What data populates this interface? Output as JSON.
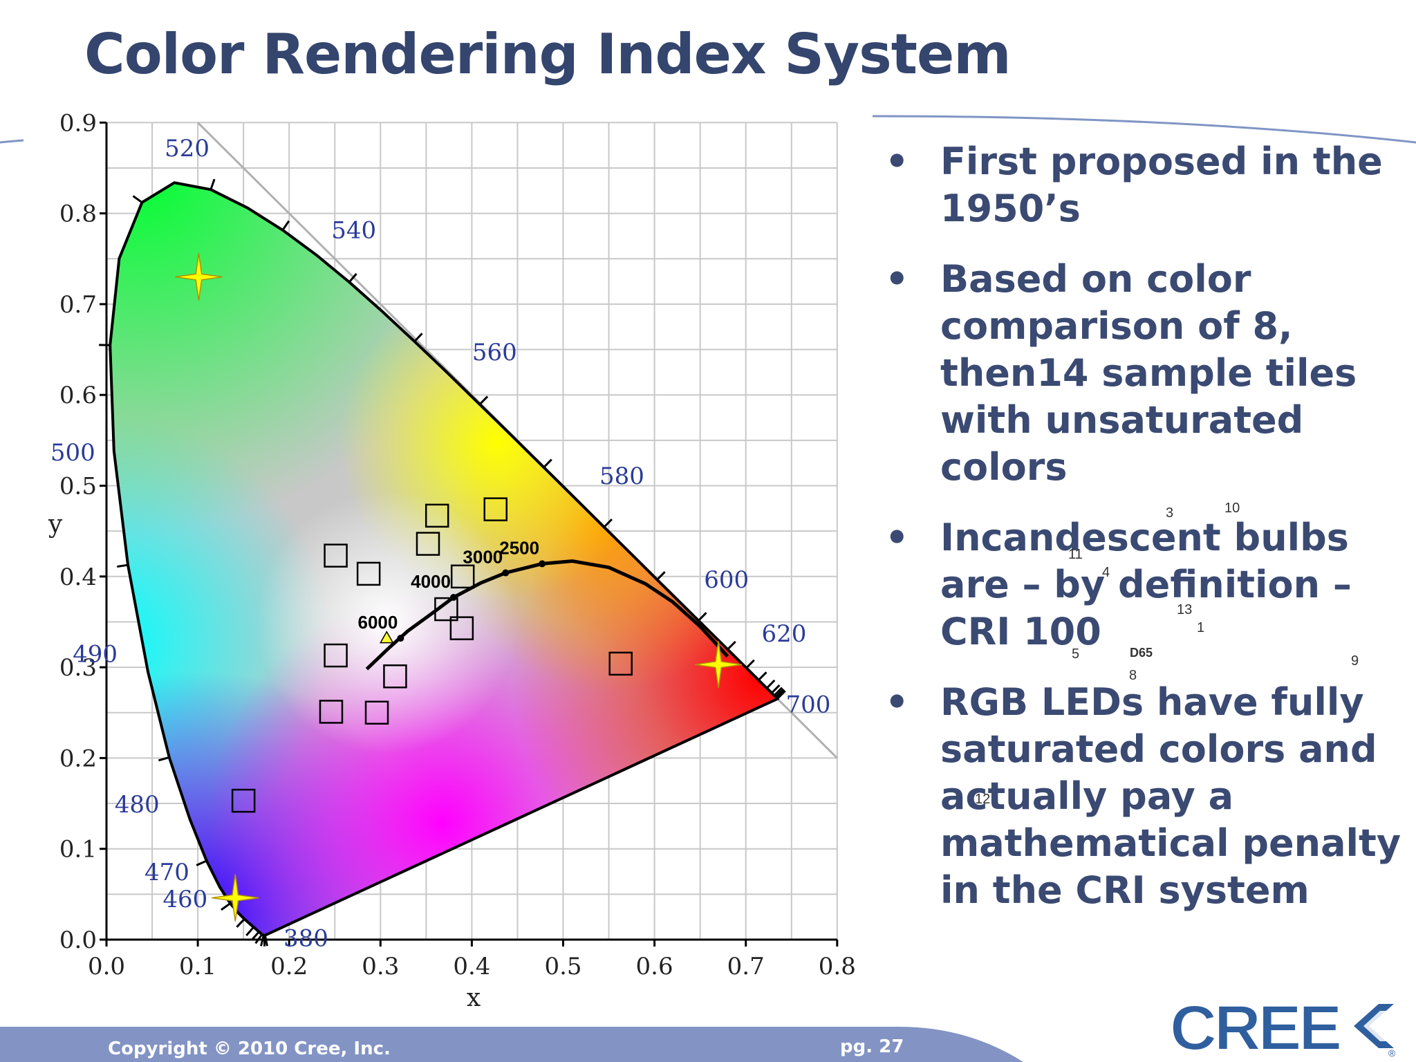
{
  "title": "Color Rendering Index System",
  "bullets": [
    "First proposed in the 1950’s",
    "Based on color comparison of  8, then14 sample tiles with unsaturated colors",
    "Incandescent bulbs are – by definition – CRI 100",
    "RGB LEDs have fully saturated colors and actually pay a mathematical penalty in the CRI system"
  ],
  "bullet_symbol": "•",
  "sample_number_overlay": [
    {
      "label": "3"
    },
    {
      "label": "10"
    },
    {
      "label": "11"
    },
    {
      "label": "4"
    },
    {
      "label": "13"
    },
    {
      "label": "1"
    },
    {
      "label": "5"
    },
    {
      "label": "D65"
    },
    {
      "label": "8"
    },
    {
      "label": "9"
    },
    {
      "label": "12"
    }
  ],
  "diagram": {
    "x_axis_label": "x",
    "y_axis_label": "y",
    "x_ticks": [
      "0.0",
      "0.1",
      "0.2",
      "0.3",
      "0.4",
      "0.5",
      "0.6",
      "0.7",
      "0.8"
    ],
    "y_ticks": [
      "0.0",
      "0.1",
      "0.2",
      "0.3",
      "0.4",
      "0.5",
      "0.6",
      "0.7",
      "0.8",
      "0.9"
    ],
    "x_range": [
      0,
      0.8
    ],
    "y_range": [
      0,
      0.9
    ],
    "wavelength_labels": [
      {
        "text": "380",
        "x": 0.1741,
        "y": 0.005
      },
      {
        "text": "460",
        "x": 0.144,
        "y": 0.0297
      },
      {
        "text": "470",
        "x": 0.1241,
        "y": 0.0578
      },
      {
        "text": "480",
        "x": 0.0913,
        "y": 0.1327
      },
      {
        "text": "490",
        "x": 0.0454,
        "y": 0.295
      },
      {
        "text": "500",
        "x": 0.0082,
        "y": 0.5384
      },
      {
        "text": "520",
        "x": 0.0743,
        "y": 0.8338
      },
      {
        "text": "540",
        "x": 0.2296,
        "y": 0.7543
      },
      {
        "text": "560",
        "x": 0.3731,
        "y": 0.6245
      },
      {
        "text": "580",
        "x": 0.5125,
        "y": 0.4866
      },
      {
        "text": "600",
        "x": 0.627,
        "y": 0.3725
      },
      {
        "text": "620",
        "x": 0.6915,
        "y": 0.3083
      },
      {
        "text": "700",
        "x": 0.7347,
        "y": 0.2653
      }
    ],
    "planckian_locus_labels": [
      "6000",
      "4000",
      "3000",
      "2500"
    ],
    "planckian_points": [
      {
        "label": "6000",
        "x": 0.322,
        "y": 0.332
      },
      {
        "label": "4000",
        "x": 0.38,
        "y": 0.377
      },
      {
        "label": "3000",
        "x": 0.437,
        "y": 0.404
      },
      {
        "label": "2500",
        "x": 0.477,
        "y": 0.414
      }
    ],
    "locus_curve": [
      [
        0.285,
        0.298
      ],
      [
        0.31,
        0.322
      ],
      [
        0.33,
        0.34
      ],
      [
        0.36,
        0.362
      ],
      [
        0.38,
        0.377
      ],
      [
        0.41,
        0.393
      ],
      [
        0.437,
        0.404
      ],
      [
        0.477,
        0.414
      ],
      [
        0.51,
        0.417
      ],
      [
        0.55,
        0.41
      ],
      [
        0.59,
        0.392
      ],
      [
        0.62,
        0.372
      ],
      [
        0.65,
        0.345
      ],
      [
        0.68,
        0.312
      ]
    ],
    "sample_squares": [
      {
        "x": 0.362,
        "y": 0.467
      },
      {
        "x": 0.426,
        "y": 0.474
      },
      {
        "x": 0.352,
        "y": 0.436
      },
      {
        "x": 0.251,
        "y": 0.423
      },
      {
        "x": 0.287,
        "y": 0.403
      },
      {
        "x": 0.39,
        "y": 0.4
      },
      {
        "x": 0.372,
        "y": 0.364
      },
      {
        "x": 0.389,
        "y": 0.343
      },
      {
        "x": 0.251,
        "y": 0.313
      },
      {
        "x": 0.316,
        "y": 0.29
      },
      {
        "x": 0.563,
        "y": 0.304
      },
      {
        "x": 0.246,
        "y": 0.251
      },
      {
        "x": 0.296,
        "y": 0.25
      },
      {
        "x": 0.15,
        "y": 0.153
      }
    ],
    "primary_stars": [
      {
        "x": 0.101,
        "y": 0.73
      },
      {
        "x": 0.67,
        "y": 0.303
      },
      {
        "x": 0.141,
        "y": 0.046
      }
    ]
  },
  "footer": {
    "copyright": "Copyright © 2010 Cree, Inc.",
    "page": "pg. 27"
  },
  "logo": {
    "text": "CREE",
    "registered": "®"
  },
  "colors": {
    "title": "#34456e",
    "bullet_text": "#3a4a72",
    "footer_bar": "#8293c4",
    "logo": "#2f5f9e",
    "grid": "#c8c8c8"
  }
}
